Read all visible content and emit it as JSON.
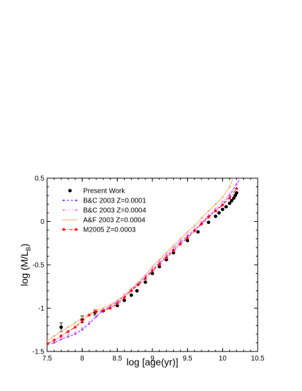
{
  "chart_data": {
    "type": "line",
    "xlabel": "log [age(yr)]",
    "ylabel": "log (M/L_B)",
    "ylabel_main": "log (M/L",
    "ylabel_sub": "B",
    "ylabel_close": ")",
    "xlim": [
      7.5,
      10.5
    ],
    "ylim": [
      -1.5,
      0.5
    ],
    "xticks": [
      "7.5",
      "8",
      "8.5",
      "9",
      "9.5",
      "10",
      "10.5"
    ],
    "yticks": [
      "-1.5",
      "-1",
      "-0.5",
      "0",
      "0.5"
    ],
    "grid": false,
    "legend_position": "top-left",
    "series": [
      {
        "name": "Present Work",
        "style": "points-errorbars",
        "color": "#000000",
        "x": [
          7.7,
          8.0,
          8.18,
          8.3,
          8.5,
          8.6,
          8.7,
          8.78,
          8.9,
          9.0,
          9.1,
          9.2,
          9.3,
          9.5,
          9.65,
          9.8,
          9.9,
          9.95,
          10.0,
          10.05,
          10.1,
          10.13,
          10.16,
          10.18,
          10.2
        ],
        "y": [
          -1.22,
          -1.13,
          -1.05,
          -1.03,
          -0.97,
          -0.91,
          -0.85,
          -0.8,
          -0.7,
          -0.6,
          -0.52,
          -0.44,
          -0.36,
          -0.22,
          -0.12,
          -0.01,
          0.06,
          0.1,
          0.14,
          0.17,
          0.21,
          0.24,
          0.27,
          0.3,
          0.33
        ],
        "yerr": [
          0.05,
          0.04,
          0.03,
          0.02,
          0.02,
          0.02,
          0.02,
          0.02,
          0.02,
          0.02,
          0.02,
          0.02,
          0.02,
          0.02,
          0.02,
          0.02,
          0.02,
          0.02,
          0.02,
          0.02,
          0.02,
          0.02,
          0.02,
          0.02,
          0.02
        ]
      },
      {
        "name": "B&C 2003 Z=0.0001",
        "style": "dashed-dots",
        "color": "#9b30ff",
        "x": [
          7.5,
          7.6,
          7.7,
          7.8,
          7.9,
          8.0,
          8.1,
          8.2,
          8.3,
          8.4,
          8.5,
          8.6,
          8.7,
          8.8,
          8.9,
          9.0,
          9.1,
          9.2,
          9.3,
          9.4,
          9.5,
          9.6,
          9.7,
          9.8,
          9.9,
          10.0,
          10.1,
          10.2,
          10.25
        ],
        "y": [
          -1.42,
          -1.4,
          -1.36,
          -1.33,
          -1.3,
          -1.25,
          -1.18,
          -1.1,
          -1.03,
          -0.98,
          -0.93,
          -0.86,
          -0.79,
          -0.72,
          -0.64,
          -0.56,
          -0.48,
          -0.4,
          -0.32,
          -0.24,
          -0.17,
          -0.1,
          -0.02,
          0.06,
          0.13,
          0.2,
          0.3,
          0.43,
          0.5
        ]
      },
      {
        "name": "B&C 2003 Z=0.0004",
        "style": "dotted-dots",
        "color": "#ee82ee",
        "x": [
          7.5,
          7.6,
          7.7,
          7.8,
          7.9,
          8.0,
          8.1,
          8.2,
          8.3,
          8.4,
          8.5,
          8.6,
          8.7,
          8.8,
          8.9,
          9.0,
          9.1,
          9.2,
          9.3,
          9.4,
          9.5,
          9.6,
          9.7,
          9.8,
          9.9,
          10.0,
          10.1,
          10.2,
          10.25
        ],
        "y": [
          -1.41,
          -1.38,
          -1.34,
          -1.31,
          -1.28,
          -1.23,
          -1.16,
          -1.08,
          -1.02,
          -0.97,
          -0.91,
          -0.84,
          -0.77,
          -0.7,
          -0.62,
          -0.54,
          -0.46,
          -0.38,
          -0.3,
          -0.22,
          -0.15,
          -0.08,
          0.0,
          0.08,
          0.15,
          0.23,
          0.32,
          0.44,
          0.5
        ]
      },
      {
        "name": "A&F 2003 Z=0.0004",
        "style": "solid",
        "color": "#f4a460",
        "x": [
          7.5,
          7.6,
          7.7,
          7.8,
          7.9,
          8.0,
          8.1,
          8.2,
          8.3,
          8.4,
          8.5,
          8.6,
          8.7,
          8.8,
          8.9,
          9.0,
          9.1,
          9.2,
          9.3,
          9.4,
          9.5,
          9.6,
          9.7,
          9.8,
          9.9,
          10.0,
          10.1,
          10.15
        ],
        "y": [
          -1.38,
          -1.32,
          -1.27,
          -1.22,
          -1.17,
          -1.11,
          -1.07,
          -1.02,
          -1.0,
          -0.96,
          -0.91,
          -0.86,
          -0.78,
          -0.7,
          -0.62,
          -0.52,
          -0.44,
          -0.36,
          -0.28,
          -0.2,
          -0.12,
          -0.05,
          0.04,
          0.12,
          0.2,
          0.28,
          0.4,
          0.5
        ]
      },
      {
        "name": "M2005 Z=0.0003",
        "style": "dashdot-stars",
        "color": "#ff0000",
        "x": [
          7.5,
          7.6,
          7.7,
          7.8,
          7.9,
          8.0,
          8.1,
          8.2,
          8.3,
          8.4,
          8.5,
          8.6,
          8.7,
          8.8,
          8.9,
          9.0,
          9.1,
          9.2,
          9.3,
          9.4,
          9.5,
          9.6,
          9.7,
          9.8,
          9.9,
          10.0,
          10.1,
          10.2
        ],
        "y": [
          -1.41,
          -1.37,
          -1.32,
          -1.27,
          -1.22,
          -1.15,
          -1.08,
          -1.04,
          -1.03,
          -1.0,
          -0.95,
          -0.88,
          -0.8,
          -0.73,
          -0.66,
          -0.57,
          -0.5,
          -0.42,
          -0.34,
          -0.26,
          -0.19,
          -0.11,
          -0.03,
          0.05,
          0.12,
          0.19,
          0.27,
          0.38
        ]
      }
    ]
  }
}
